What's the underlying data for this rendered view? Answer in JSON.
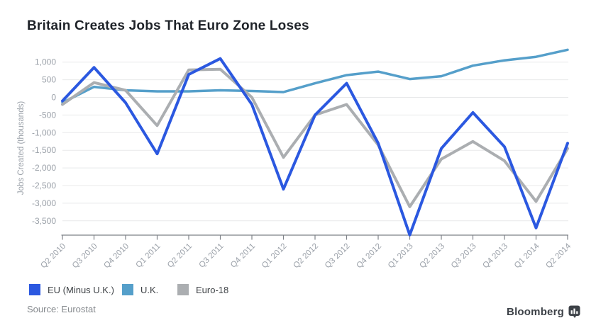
{
  "title": "Britain Creates Jobs That Euro Zone Loses",
  "source": "Source: Eurostat",
  "branding": {
    "name": "Bloomberg",
    "icon": "bar-chart-logo-icon",
    "color": "#3c4147"
  },
  "colors": {
    "grid": "#e8e9ea",
    "axis": "#7e8288",
    "tick_label": "#9ba1a9",
    "axis_title": "#9ba1a9",
    "title_text": "#1f2329",
    "legend_text": "#3f4347",
    "source_text": "#85898d"
  },
  "chart_data": {
    "type": "line",
    "title": "Britain Creates Jobs That Euro Zone Loses",
    "xlabel": "",
    "ylabel": "Jobs Created (thousands)",
    "grid": true,
    "legend_position": "bottom-left",
    "ylim": [
      -4000,
      1100
    ],
    "yticks": [
      1000,
      500,
      0,
      -500,
      -1000,
      -1500,
      -2000,
      -2500,
      -3000,
      -3500
    ],
    "ytick_labels": [
      "1,000",
      "500",
      "0",
      "-500",
      "-1,000",
      "-1,500",
      "-2,000",
      "-2,500",
      "-3,000",
      "-3,500"
    ],
    "categories": [
      "Q2 2010",
      "Q3 2010",
      "Q4 2010",
      "Q1 2011",
      "Q2 2011",
      "Q3 2011",
      "Q4 2011",
      "Q1 2012",
      "Q2 2012",
      "Q3 2012",
      "Q4 2012",
      "Q1 2013",
      "Q2 2013",
      "Q3 2013",
      "Q4 2013",
      "Q1 2014",
      "Q2 2014"
    ],
    "series": [
      {
        "name": "EU (Minus U.K.)",
        "color": "#2b58e0",
        "values": [
          -100,
          850,
          -150,
          -1600,
          650,
          1100,
          -200,
          -2600,
          -500,
          400,
          -1300,
          -3900,
          -1450,
          -430,
          -1400,
          -3700,
          -1300
        ]
      },
      {
        "name": "U.K.",
        "color": "#559fca",
        "values": [
          -150,
          300,
          200,
          170,
          170,
          200,
          180,
          150,
          400,
          630,
          730,
          520,
          600,
          900,
          1050,
          1150,
          1350
        ]
      },
      {
        "name": "Euro-18",
        "color": "#abaeb1",
        "values": [
          -200,
          420,
          200,
          -800,
          780,
          800,
          0,
          -1700,
          -500,
          -200,
          -1350,
          -3100,
          -1750,
          -1250,
          -1800,
          -2950,
          -1450
        ]
      }
    ]
  }
}
